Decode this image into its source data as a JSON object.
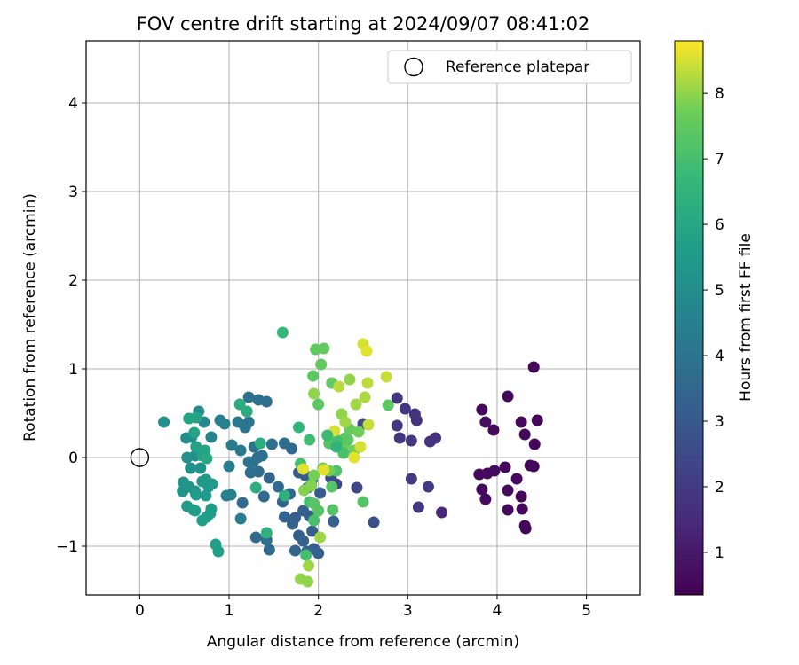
{
  "chart_data": {
    "type": "scatter",
    "title": "FOV centre drift starting at 2024/09/07 08:41:02",
    "xlabel": "Angular distance from reference (arcmin)",
    "ylabel": "Rotation from reference (arcmin)",
    "xlim": [
      -0.6,
      5.6
    ],
    "ylim": [
      -1.55,
      4.7
    ],
    "xticks": [
      0,
      1,
      2,
      3,
      4,
      5
    ],
    "yticks": [
      -1,
      0,
      1,
      2,
      3,
      4
    ],
    "xtick_labels": [
      "0",
      "1",
      "2",
      "3",
      "4",
      "5"
    ],
    "ytick_labels": [
      "−1",
      "0",
      "1",
      "2",
      "3",
      "4"
    ],
    "grid": true,
    "legend": {
      "placement": "top-right",
      "entries": [
        "Reference platepar"
      ]
    },
    "reference_point": {
      "x": 0,
      "y": 0,
      "label": "Reference platepar"
    },
    "colorbar": {
      "label": "Hours from first FF file",
      "colormap": "viridis",
      "range": [
        0.35,
        8.8
      ],
      "ticks": [
        1,
        2,
        3,
        4,
        5,
        6,
        7,
        8
      ],
      "tick_labels": [
        "1",
        "2",
        "3",
        "4",
        "5",
        "6",
        "7",
        "8"
      ]
    },
    "points": [
      {
        "x": 4.41,
        "y": 1.02,
        "h": 0.5
      },
      {
        "x": 4.12,
        "y": 0.69,
        "h": 0.5
      },
      {
        "x": 3.83,
        "y": 0.54,
        "h": 0.6
      },
      {
        "x": 4.27,
        "y": 0.4,
        "h": 0.6
      },
      {
        "x": 4.45,
        "y": 0.42,
        "h": 0.5
      },
      {
        "x": 3.87,
        "y": 0.4,
        "h": 0.7
      },
      {
        "x": 3.96,
        "y": 0.31,
        "h": 0.6
      },
      {
        "x": 4.31,
        "y": 0.26,
        "h": 0.5
      },
      {
        "x": 4.42,
        "y": 0.15,
        "h": 0.5
      },
      {
        "x": 3.8,
        "y": -0.19,
        "h": 0.6
      },
      {
        "x": 3.89,
        "y": -0.18,
        "h": 0.6
      },
      {
        "x": 3.97,
        "y": -0.15,
        "h": 0.6
      },
      {
        "x": 4.09,
        "y": -0.11,
        "h": 0.5
      },
      {
        "x": 4.37,
        "y": -0.09,
        "h": 0.5
      },
      {
        "x": 4.41,
        "y": -0.1,
        "h": 0.5
      },
      {
        "x": 4.22,
        "y": -0.24,
        "h": 0.6
      },
      {
        "x": 3.83,
        "y": -0.36,
        "h": 0.6
      },
      {
        "x": 4.12,
        "y": -0.37,
        "h": 0.6
      },
      {
        "x": 3.87,
        "y": -0.47,
        "h": 0.6
      },
      {
        "x": 4.27,
        "y": -0.44,
        "h": 0.5
      },
      {
        "x": 4.12,
        "y": -0.59,
        "h": 0.6
      },
      {
        "x": 4.28,
        "y": -0.58,
        "h": 0.5
      },
      {
        "x": 4.31,
        "y": -0.77,
        "h": 0.5
      },
      {
        "x": 4.32,
        "y": -0.8,
        "h": 0.5
      },
      {
        "x": 3.38,
        "y": -0.62,
        "h": 1.4
      },
      {
        "x": 2.88,
        "y": 0.67,
        "h": 1.9
      },
      {
        "x": 2.97,
        "y": 0.55,
        "h": 1.9
      },
      {
        "x": 3.08,
        "y": 0.49,
        "h": 1.8
      },
      {
        "x": 3.1,
        "y": 0.42,
        "h": 1.8
      },
      {
        "x": 2.88,
        "y": 0.36,
        "h": 1.9
      },
      {
        "x": 2.91,
        "y": 0.22,
        "h": 1.9
      },
      {
        "x": 3.04,
        "y": 0.19,
        "h": 1.9
      },
      {
        "x": 3.25,
        "y": 0.18,
        "h": 1.8
      },
      {
        "x": 3.31,
        "y": 0.22,
        "h": 1.7
      },
      {
        "x": 3.04,
        "y": -0.24,
        "h": 2.0
      },
      {
        "x": 3.23,
        "y": -0.33,
        "h": 2.0
      },
      {
        "x": 3.12,
        "y": -0.56,
        "h": 2.0
      },
      {
        "x": 2.43,
        "y": -0.34,
        "h": 2.4
      },
      {
        "x": 2.62,
        "y": -0.73,
        "h": 2.7
      },
      {
        "x": 2.5,
        "y": 0.38,
        "h": 2.5
      },
      {
        "x": 2.2,
        "y": -0.3,
        "h": 2.4
      },
      {
        "x": 2.14,
        "y": -0.23,
        "h": 2.5
      },
      {
        "x": 1.78,
        "y": -0.17,
        "h": 3.0
      },
      {
        "x": 1.85,
        "y": -0.2,
        "h": 3.1
      },
      {
        "x": 1.93,
        "y": -0.25,
        "h": 3.0
      },
      {
        "x": 1.88,
        "y": -0.34,
        "h": 3.2
      },
      {
        "x": 2.02,
        "y": -0.4,
        "h": 3.1
      },
      {
        "x": 1.74,
        "y": -0.68,
        "h": 3.2
      },
      {
        "x": 1.83,
        "y": -0.6,
        "h": 3.3
      },
      {
        "x": 1.9,
        "y": -0.66,
        "h": 3.2
      },
      {
        "x": 1.71,
        "y": -0.75,
        "h": 3.3
      },
      {
        "x": 1.78,
        "y": -0.88,
        "h": 3.2
      },
      {
        "x": 1.83,
        "y": -0.94,
        "h": 3.3
      },
      {
        "x": 1.93,
        "y": -0.83,
        "h": 3.2
      },
      {
        "x": 2.17,
        "y": -0.72,
        "h": 3.3
      },
      {
        "x": 1.95,
        "y": -1.03,
        "h": 3.2
      },
      {
        "x": 2.0,
        "y": -1.08,
        "h": 3.3
      },
      {
        "x": 1.74,
        "y": -1.05,
        "h": 3.4
      },
      {
        "x": 1.87,
        "y": -1.06,
        "h": 3.5
      },
      {
        "x": 1.62,
        "y": -0.67,
        "h": 3.4
      },
      {
        "x": 1.45,
        "y": -1.04,
        "h": 3.6
      },
      {
        "x": 1.42,
        "y": -0.93,
        "h": 3.8
      },
      {
        "x": 1.3,
        "y": -0.9,
        "h": 3.7
      },
      {
        "x": 1.15,
        "y": -0.51,
        "h": 3.7
      },
      {
        "x": 1.39,
        "y": -0.44,
        "h": 3.6
      },
      {
        "x": 1.55,
        "y": -0.33,
        "h": 3.6
      },
      {
        "x": 1.6,
        "y": -0.5,
        "h": 3.5
      },
      {
        "x": 1.45,
        "y": -0.23,
        "h": 3.4
      },
      {
        "x": 1.33,
        "y": -0.16,
        "h": 3.7
      },
      {
        "x": 1.27,
        "y": -0.05,
        "h": 3.9
      },
      {
        "x": 1.24,
        "y": -0.17,
        "h": 3.8
      },
      {
        "x": 1.68,
        "y": -0.41,
        "h": 3.5
      },
      {
        "x": 1.22,
        "y": 0.68,
        "h": 3.9
      },
      {
        "x": 1.33,
        "y": 0.65,
        "h": 3.9
      },
      {
        "x": 1.42,
        "y": 0.63,
        "h": 3.8
      },
      {
        "x": 1.62,
        "y": 0.16,
        "h": 3.7
      },
      {
        "x": 1.7,
        "y": 0.1,
        "h": 3.6
      },
      {
        "x": 1.48,
        "y": 0.15,
        "h": 3.8
      },
      {
        "x": 1.28,
        "y": 0.12,
        "h": 4.0
      },
      {
        "x": 1.22,
        "y": 0.4,
        "h": 4.0
      },
      {
        "x": 1.18,
        "y": 0.34,
        "h": 4.1
      },
      {
        "x": 1.1,
        "y": 0.4,
        "h": 4.2
      },
      {
        "x": 1.13,
        "y": 0.08,
        "h": 4.2
      },
      {
        "x": 1.22,
        "y": -0.05,
        "h": 4.0
      },
      {
        "x": 1.32,
        "y": 0.0,
        "h": 3.9
      },
      {
        "x": 1.37,
        "y": 0.02,
        "h": 3.9
      },
      {
        "x": 1.03,
        "y": 0.14,
        "h": 4.3
      },
      {
        "x": 0.95,
        "y": 0.38,
        "h": 4.5
      },
      {
        "x": 0.9,
        "y": 0.42,
        "h": 4.5
      },
      {
        "x": 1.0,
        "y": -0.1,
        "h": 4.4
      },
      {
        "x": 0.97,
        "y": -0.43,
        "h": 4.5
      },
      {
        "x": 1.13,
        "y": -0.69,
        "h": 4.4
      },
      {
        "x": 1.02,
        "y": -0.42,
        "h": 4.5
      },
      {
        "x": 0.72,
        "y": 0.4,
        "h": 4.8
      },
      {
        "x": 0.8,
        "y": 0.23,
        "h": 4.7
      },
      {
        "x": 0.66,
        "y": 0.52,
        "h": 5.0
      },
      {
        "x": 0.52,
        "y": 0.22,
        "h": 5.0
      },
      {
        "x": 0.58,
        "y": 0.23,
        "h": 5.0
      },
      {
        "x": 0.62,
        "y": 0.02,
        "h": 5.0
      },
      {
        "x": 0.53,
        "y": 0.0,
        "h": 5.1
      },
      {
        "x": 0.57,
        "y": -0.12,
        "h": 5.1
      },
      {
        "x": 0.68,
        "y": -0.12,
        "h": 5.2
      },
      {
        "x": 0.49,
        "y": -0.28,
        "h": 5.2
      },
      {
        "x": 0.48,
        "y": -0.38,
        "h": 5.2
      },
      {
        "x": 0.55,
        "y": -0.33,
        "h": 5.3
      },
      {
        "x": 0.62,
        "y": -0.38,
        "h": 5.3
      },
      {
        "x": 0.7,
        "y": -0.27,
        "h": 5.4
      },
      {
        "x": 0.74,
        "y": -0.25,
        "h": 5.4
      },
      {
        "x": 0.77,
        "y": -0.33,
        "h": 5.4
      },
      {
        "x": 0.8,
        "y": -0.3,
        "h": 5.4
      },
      {
        "x": 0.81,
        "y": -0.3,
        "h": 5.5
      },
      {
        "x": 0.63,
        "y": -0.42,
        "h": 5.5
      },
      {
        "x": 0.74,
        "y": -0.43,
        "h": 5.5
      },
      {
        "x": 0.53,
        "y": -0.55,
        "h": 5.5
      },
      {
        "x": 0.6,
        "y": -0.59,
        "h": 5.6
      },
      {
        "x": 0.62,
        "y": -0.6,
        "h": 5.6
      },
      {
        "x": 0.75,
        "y": -0.67,
        "h": 5.6
      },
      {
        "x": 0.79,
        "y": -0.63,
        "h": 5.6
      },
      {
        "x": 0.7,
        "y": -0.71,
        "h": 5.7
      },
      {
        "x": 0.8,
        "y": -0.58,
        "h": 5.6
      },
      {
        "x": 0.85,
        "y": -0.98,
        "h": 5.7
      },
      {
        "x": 0.88,
        "y": -1.06,
        "h": 5.7
      },
      {
        "x": 0.7,
        "y": 0.02,
        "h": 5.8
      },
      {
        "x": 0.63,
        "y": 0.12,
        "h": 5.8
      },
      {
        "x": 0.55,
        "y": 0.44,
        "h": 5.9
      },
      {
        "x": 0.63,
        "y": 0.45,
        "h": 5.9
      },
      {
        "x": 0.61,
        "y": 0.28,
        "h": 5.9
      },
      {
        "x": 0.73,
        "y": 0.08,
        "h": 5.9
      },
      {
        "x": 0.75,
        "y": -0.01,
        "h": 6.0
      },
      {
        "x": 0.27,
        "y": 0.4,
        "h": 5.1
      },
      {
        "x": 1.12,
        "y": 0.6,
        "h": 6.2
      },
      {
        "x": 1.2,
        "y": 0.52,
        "h": 6.2
      },
      {
        "x": 1.6,
        "y": 1.41,
        "h": 6.7
      },
      {
        "x": 1.35,
        "y": 0.16,
        "h": 6.3
      },
      {
        "x": 1.3,
        "y": -0.34,
        "h": 6.3
      },
      {
        "x": 1.42,
        "y": -0.85,
        "h": 6.4
      },
      {
        "x": 1.62,
        "y": -0.43,
        "h": 6.4
      },
      {
        "x": 1.78,
        "y": 0.34,
        "h": 6.6
      },
      {
        "x": 1.9,
        "y": 0.2,
        "h": 6.9
      },
      {
        "x": 1.8,
        "y": -0.07,
        "h": 7.0
      },
      {
        "x": 1.92,
        "y": -0.3,
        "h": 7.0
      },
      {
        "x": 1.9,
        "y": -0.5,
        "h": 7.0
      },
      {
        "x": 1.95,
        "y": -0.71,
        "h": 7.1
      },
      {
        "x": 1.86,
        "y": -1.1,
        "h": 7.0
      },
      {
        "x": 1.95,
        "y": -0.52,
        "h": 7.3
      },
      {
        "x": 2.0,
        "y": -0.6,
        "h": 7.3
      },
      {
        "x": 2.15,
        "y": -0.33,
        "h": 7.3
      },
      {
        "x": 2.16,
        "y": -0.59,
        "h": 7.3
      },
      {
        "x": 2.5,
        "y": -0.5,
        "h": 7.3
      },
      {
        "x": 2.2,
        "y": -0.15,
        "h": 7.2
      },
      {
        "x": 2.18,
        "y": 0.22,
        "h": 7.2
      },
      {
        "x": 2.12,
        "y": 0.16,
        "h": 7.3
      },
      {
        "x": 1.94,
        "y": 0.92,
        "h": 7.4
      },
      {
        "x": 2.0,
        "y": 0.6,
        "h": 7.4
      },
      {
        "x": 2.03,
        "y": 1.05,
        "h": 7.5
      },
      {
        "x": 1.97,
        "y": 1.22,
        "h": 7.5
      },
      {
        "x": 2.06,
        "y": 1.23,
        "h": 7.5
      },
      {
        "x": 2.15,
        "y": 0.84,
        "h": 7.5
      },
      {
        "x": 2.78,
        "y": 0.59,
        "h": 7.4
      },
      {
        "x": 2.3,
        "y": 0.22,
        "h": 7.4
      },
      {
        "x": 2.35,
        "y": 0.32,
        "h": 7.6
      },
      {
        "x": 2.45,
        "y": 0.29,
        "h": 7.7
      },
      {
        "x": 2.3,
        "y": 0.15,
        "h": 7.7
      },
      {
        "x": 2.4,
        "y": 0.08,
        "h": 7.7
      },
      {
        "x": 2.05,
        "y": -0.12,
        "h": 7.7
      },
      {
        "x": 2.12,
        "y": -0.15,
        "h": 7.8
      },
      {
        "x": 1.95,
        "y": -0.2,
        "h": 7.8
      },
      {
        "x": 1.92,
        "y": -0.32,
        "h": 7.9
      },
      {
        "x": 1.84,
        "y": -0.37,
        "h": 7.9
      },
      {
        "x": 1.8,
        "y": -1.37,
        "h": 8.0
      },
      {
        "x": 1.88,
        "y": -1.4,
        "h": 8.0
      },
      {
        "x": 1.89,
        "y": -1.22,
        "h": 8.1
      },
      {
        "x": 2.02,
        "y": -0.9,
        "h": 8.1
      },
      {
        "x": 1.95,
        "y": 0.72,
        "h": 8.0
      },
      {
        "x": 2.35,
        "y": 0.88,
        "h": 8.0
      },
      {
        "x": 2.26,
        "y": 0.49,
        "h": 8.0
      },
      {
        "x": 2.3,
        "y": 0.4,
        "h": 8.1
      },
      {
        "x": 2.42,
        "y": 0.6,
        "h": 8.1
      },
      {
        "x": 2.52,
        "y": 0.68,
        "h": 8.2
      },
      {
        "x": 2.55,
        "y": 0.84,
        "h": 8.3
      },
      {
        "x": 2.23,
        "y": 0.8,
        "h": 8.3
      },
      {
        "x": 2.76,
        "y": 0.91,
        "h": 8.4
      },
      {
        "x": 2.5,
        "y": 1.28,
        "h": 8.5
      },
      {
        "x": 2.54,
        "y": 1.2,
        "h": 8.6
      },
      {
        "x": 2.56,
        "y": 0.37,
        "h": 8.4
      },
      {
        "x": 2.47,
        "y": 0.12,
        "h": 8.5
      },
      {
        "x": 2.4,
        "y": 0.0,
        "h": 8.6
      },
      {
        "x": 2.18,
        "y": 0.3,
        "h": 8.5
      },
      {
        "x": 2.06,
        "y": -0.14,
        "h": 8.6
      },
      {
        "x": 1.83,
        "y": -0.13,
        "h": 8.6
      },
      {
        "x": 2.22,
        "y": 0.18,
        "h": 7.0
      },
      {
        "x": 2.28,
        "y": 0.05,
        "h": 7.1
      },
      {
        "x": 2.33,
        "y": 0.2,
        "h": 7.4
      },
      {
        "x": 2.2,
        "y": 0.12,
        "h": 6.5
      },
      {
        "x": 2.1,
        "y": 0.25,
        "h": 6.8
      }
    ]
  }
}
